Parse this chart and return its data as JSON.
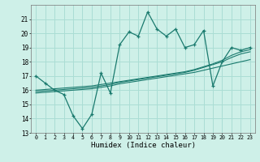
{
  "xlabel": "Humidex (Indice chaleur)",
  "bg_color": "#cef0e8",
  "grid_color": "#aaddd4",
  "line_color": "#1a7a6e",
  "x_data": [
    0,
    1,
    2,
    3,
    4,
    5,
    6,
    7,
    8,
    9,
    10,
    11,
    12,
    13,
    14,
    15,
    16,
    17,
    18,
    19,
    20,
    21,
    22,
    23
  ],
  "y_main": [
    17.0,
    16.5,
    16.0,
    15.7,
    14.2,
    13.3,
    14.3,
    17.2,
    15.8,
    19.2,
    20.1,
    19.8,
    21.5,
    20.3,
    19.8,
    20.3,
    19.0,
    19.2,
    20.2,
    16.3,
    18.0,
    19.0,
    18.8,
    19.0
  ],
  "y_line1": [
    15.8,
    15.85,
    15.9,
    15.95,
    16.0,
    16.05,
    16.1,
    16.2,
    16.3,
    16.45,
    16.55,
    16.65,
    16.75,
    16.85,
    16.95,
    17.05,
    17.15,
    17.25,
    17.4,
    17.55,
    17.7,
    17.85,
    18.0,
    18.15
  ],
  "y_line2": [
    15.9,
    15.95,
    16.0,
    16.05,
    16.1,
    16.15,
    16.2,
    16.3,
    16.4,
    16.55,
    16.65,
    16.75,
    16.85,
    16.95,
    17.05,
    17.15,
    17.25,
    17.4,
    17.6,
    17.8,
    18.0,
    18.3,
    18.55,
    18.7
  ],
  "y_line3": [
    16.0,
    16.05,
    16.1,
    16.15,
    16.2,
    16.25,
    16.3,
    16.4,
    16.5,
    16.6,
    16.7,
    16.8,
    16.9,
    17.0,
    17.1,
    17.2,
    17.3,
    17.45,
    17.65,
    17.85,
    18.1,
    18.45,
    18.7,
    18.85
  ],
  "ylim": [
    13,
    22
  ],
  "xlim": [
    -0.5,
    23.5
  ],
  "yticks": [
    13,
    14,
    15,
    16,
    17,
    18,
    19,
    20,
    21
  ],
  "xticks": [
    0,
    1,
    2,
    3,
    4,
    5,
    6,
    7,
    8,
    9,
    10,
    11,
    12,
    13,
    14,
    15,
    16,
    17,
    18,
    19,
    20,
    21,
    22,
    23
  ]
}
